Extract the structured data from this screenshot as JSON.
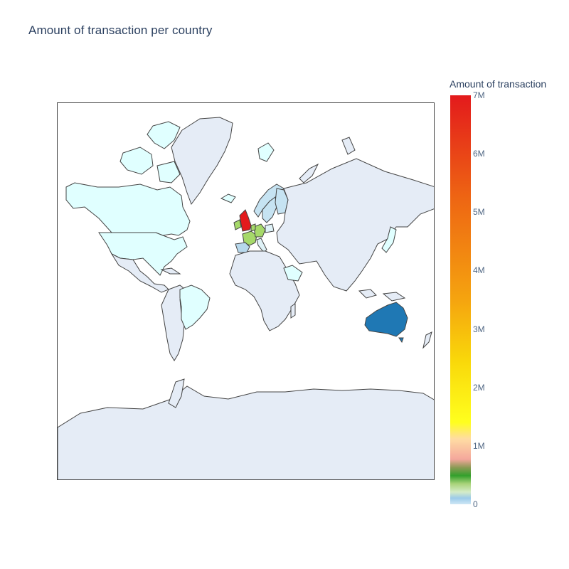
{
  "chart": {
    "title": "Amount of transaction per country"
  },
  "colorbar": {
    "title": "Amount of transaction",
    "ticks": [
      "7M",
      "6M",
      "5M",
      "4M",
      "3M",
      "2M",
      "1M",
      "0"
    ],
    "tick_values": [
      7000000,
      6000000,
      5000000,
      4000000,
      3000000,
      2000000,
      1000000,
      0
    ],
    "range": [
      0,
      7000000
    ],
    "colorscale": [
      {
        "stop": 0.0,
        "color": "#cfe7f5"
      },
      {
        "stop": 0.015,
        "color": "#9ccbe9"
      },
      {
        "stop": 0.03,
        "color": "#d5ecc8"
      },
      {
        "stop": 0.05,
        "color": "#a9d37a"
      },
      {
        "stop": 0.07,
        "color": "#33a02c"
      },
      {
        "stop": 0.09,
        "color": "#8c9a55"
      },
      {
        "stop": 0.11,
        "color": "#f4a79c"
      },
      {
        "stop": 0.16,
        "color": "#ffdca3"
      },
      {
        "stop": 0.2,
        "color": "#ffff1e"
      },
      {
        "stop": 0.35,
        "color": "#f9d80a"
      },
      {
        "stop": 0.5,
        "color": "#f5a40f"
      },
      {
        "stop": 0.75,
        "color": "#ee6513"
      },
      {
        "stop": 1.0,
        "color": "#e31a1c"
      }
    ]
  },
  "map": {
    "projection": "mercator",
    "land_color": "#e5ecf6",
    "border_color": "#444444",
    "highlighted_countries": [
      {
        "name": "United Kingdom",
        "color": "#e31a1c"
      },
      {
        "name": "Australia",
        "color": "#1f78b4"
      },
      {
        "name": "Germany",
        "color": "#a6d96a"
      },
      {
        "name": "France",
        "color": "#a6d96a"
      },
      {
        "name": "Netherlands",
        "color": "#a6d96a"
      },
      {
        "name": "Ireland",
        "color": "#a6d96a"
      },
      {
        "name": "Spain",
        "color": "#b7d8ec"
      },
      {
        "name": "Portugal",
        "color": "#c6e3f2"
      },
      {
        "name": "Switzerland",
        "color": "#c6e3f2"
      },
      {
        "name": "Belgium",
        "color": "#c6e3f2"
      },
      {
        "name": "Norway",
        "color": "#c6e3f2"
      },
      {
        "name": "Sweden",
        "color": "#c6e3f2"
      },
      {
        "name": "Finland",
        "color": "#c6e3f2"
      },
      {
        "name": "Denmark",
        "color": "#c6e3f2"
      },
      {
        "name": "Italy",
        "color": "#dff2f7"
      },
      {
        "name": "Poland",
        "color": "#dff2f7"
      },
      {
        "name": "Austria",
        "color": "#dff2f7"
      },
      {
        "name": "Canada",
        "color": "#e0ffff"
      },
      {
        "name": "United States",
        "color": "#e0ffff"
      },
      {
        "name": "Brazil",
        "color": "#e0ffff"
      },
      {
        "name": "Greenland",
        "color": "#e5ecf6"
      },
      {
        "name": "Iceland",
        "color": "#e0ffff"
      },
      {
        "name": "Saudi Arabia",
        "color": "#e0ffff"
      },
      {
        "name": "Japan",
        "color": "#e0ffff"
      }
    ]
  }
}
